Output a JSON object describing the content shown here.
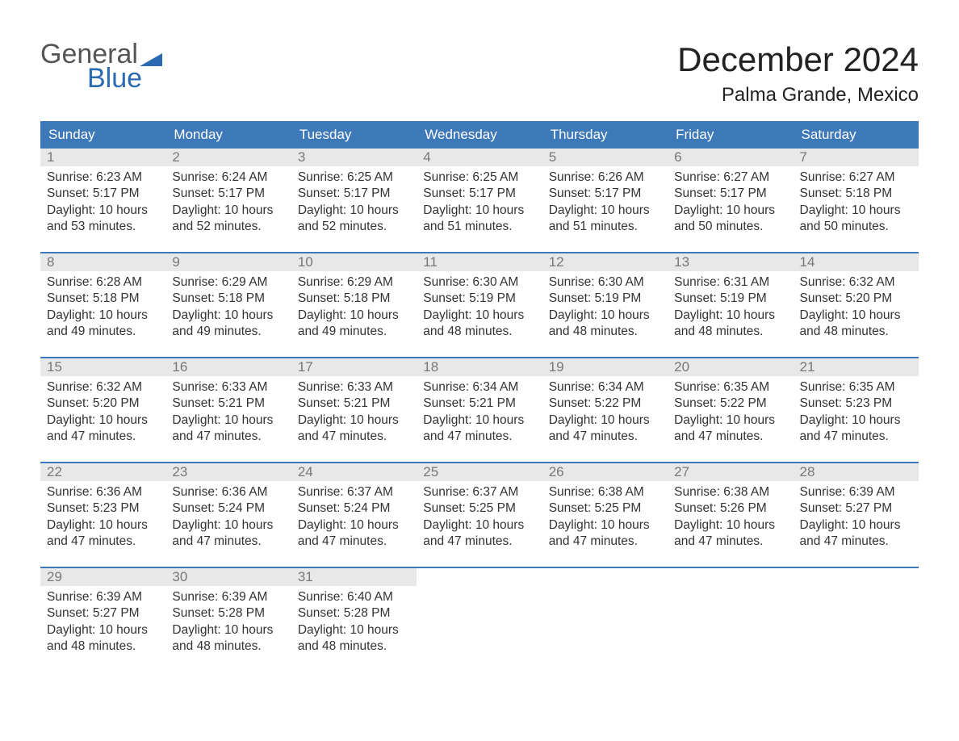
{
  "logo": {
    "word1": "General",
    "word2": "Blue",
    "word1_color": "#555555",
    "word2_color": "#2a6ab0",
    "flag_color": "#2a6ab0"
  },
  "title": "December 2024",
  "location": "Palma Grande, Mexico",
  "colors": {
    "header_bg": "#3d78b8",
    "header_text": "#ffffff",
    "daynum_bg": "#e8e8e8",
    "daynum_text": "#777777",
    "body_text": "#333333",
    "week_border": "#3d78b8",
    "page_bg": "#ffffff"
  },
  "fonts": {
    "title_size_pt": 32,
    "location_size_pt": 18,
    "header_size_pt": 13,
    "body_size_pt": 11.5
  },
  "weekdays": [
    "Sunday",
    "Monday",
    "Tuesday",
    "Wednesday",
    "Thursday",
    "Friday",
    "Saturday"
  ],
  "weeks": [
    [
      {
        "n": "1",
        "sunrise": "Sunrise: 6:23 AM",
        "sunset": "Sunset: 5:17 PM",
        "daylight": "Daylight: 10 hours and 53 minutes."
      },
      {
        "n": "2",
        "sunrise": "Sunrise: 6:24 AM",
        "sunset": "Sunset: 5:17 PM",
        "daylight": "Daylight: 10 hours and 52 minutes."
      },
      {
        "n": "3",
        "sunrise": "Sunrise: 6:25 AM",
        "sunset": "Sunset: 5:17 PM",
        "daylight": "Daylight: 10 hours and 52 minutes."
      },
      {
        "n": "4",
        "sunrise": "Sunrise: 6:25 AM",
        "sunset": "Sunset: 5:17 PM",
        "daylight": "Daylight: 10 hours and 51 minutes."
      },
      {
        "n": "5",
        "sunrise": "Sunrise: 6:26 AM",
        "sunset": "Sunset: 5:17 PM",
        "daylight": "Daylight: 10 hours and 51 minutes."
      },
      {
        "n": "6",
        "sunrise": "Sunrise: 6:27 AM",
        "sunset": "Sunset: 5:17 PM",
        "daylight": "Daylight: 10 hours and 50 minutes."
      },
      {
        "n": "7",
        "sunrise": "Sunrise: 6:27 AM",
        "sunset": "Sunset: 5:18 PM",
        "daylight": "Daylight: 10 hours and 50 minutes."
      }
    ],
    [
      {
        "n": "8",
        "sunrise": "Sunrise: 6:28 AM",
        "sunset": "Sunset: 5:18 PM",
        "daylight": "Daylight: 10 hours and 49 minutes."
      },
      {
        "n": "9",
        "sunrise": "Sunrise: 6:29 AM",
        "sunset": "Sunset: 5:18 PM",
        "daylight": "Daylight: 10 hours and 49 minutes."
      },
      {
        "n": "10",
        "sunrise": "Sunrise: 6:29 AM",
        "sunset": "Sunset: 5:18 PM",
        "daylight": "Daylight: 10 hours and 49 minutes."
      },
      {
        "n": "11",
        "sunrise": "Sunrise: 6:30 AM",
        "sunset": "Sunset: 5:19 PM",
        "daylight": "Daylight: 10 hours and 48 minutes."
      },
      {
        "n": "12",
        "sunrise": "Sunrise: 6:30 AM",
        "sunset": "Sunset: 5:19 PM",
        "daylight": "Daylight: 10 hours and 48 minutes."
      },
      {
        "n": "13",
        "sunrise": "Sunrise: 6:31 AM",
        "sunset": "Sunset: 5:19 PM",
        "daylight": "Daylight: 10 hours and 48 minutes."
      },
      {
        "n": "14",
        "sunrise": "Sunrise: 6:32 AM",
        "sunset": "Sunset: 5:20 PM",
        "daylight": "Daylight: 10 hours and 48 minutes."
      }
    ],
    [
      {
        "n": "15",
        "sunrise": "Sunrise: 6:32 AM",
        "sunset": "Sunset: 5:20 PM",
        "daylight": "Daylight: 10 hours and 47 minutes."
      },
      {
        "n": "16",
        "sunrise": "Sunrise: 6:33 AM",
        "sunset": "Sunset: 5:21 PM",
        "daylight": "Daylight: 10 hours and 47 minutes."
      },
      {
        "n": "17",
        "sunrise": "Sunrise: 6:33 AM",
        "sunset": "Sunset: 5:21 PM",
        "daylight": "Daylight: 10 hours and 47 minutes."
      },
      {
        "n": "18",
        "sunrise": "Sunrise: 6:34 AM",
        "sunset": "Sunset: 5:21 PM",
        "daylight": "Daylight: 10 hours and 47 minutes."
      },
      {
        "n": "19",
        "sunrise": "Sunrise: 6:34 AM",
        "sunset": "Sunset: 5:22 PM",
        "daylight": "Daylight: 10 hours and 47 minutes."
      },
      {
        "n": "20",
        "sunrise": "Sunrise: 6:35 AM",
        "sunset": "Sunset: 5:22 PM",
        "daylight": "Daylight: 10 hours and 47 minutes."
      },
      {
        "n": "21",
        "sunrise": "Sunrise: 6:35 AM",
        "sunset": "Sunset: 5:23 PM",
        "daylight": "Daylight: 10 hours and 47 minutes."
      }
    ],
    [
      {
        "n": "22",
        "sunrise": "Sunrise: 6:36 AM",
        "sunset": "Sunset: 5:23 PM",
        "daylight": "Daylight: 10 hours and 47 minutes."
      },
      {
        "n": "23",
        "sunrise": "Sunrise: 6:36 AM",
        "sunset": "Sunset: 5:24 PM",
        "daylight": "Daylight: 10 hours and 47 minutes."
      },
      {
        "n": "24",
        "sunrise": "Sunrise: 6:37 AM",
        "sunset": "Sunset: 5:24 PM",
        "daylight": "Daylight: 10 hours and 47 minutes."
      },
      {
        "n": "25",
        "sunrise": "Sunrise: 6:37 AM",
        "sunset": "Sunset: 5:25 PM",
        "daylight": "Daylight: 10 hours and 47 minutes."
      },
      {
        "n": "26",
        "sunrise": "Sunrise: 6:38 AM",
        "sunset": "Sunset: 5:25 PM",
        "daylight": "Daylight: 10 hours and 47 minutes."
      },
      {
        "n": "27",
        "sunrise": "Sunrise: 6:38 AM",
        "sunset": "Sunset: 5:26 PM",
        "daylight": "Daylight: 10 hours and 47 minutes."
      },
      {
        "n": "28",
        "sunrise": "Sunrise: 6:39 AM",
        "sunset": "Sunset: 5:27 PM",
        "daylight": "Daylight: 10 hours and 47 minutes."
      }
    ],
    [
      {
        "n": "29",
        "sunrise": "Sunrise: 6:39 AM",
        "sunset": "Sunset: 5:27 PM",
        "daylight": "Daylight: 10 hours and 48 minutes."
      },
      {
        "n": "30",
        "sunrise": "Sunrise: 6:39 AM",
        "sunset": "Sunset: 5:28 PM",
        "daylight": "Daylight: 10 hours and 48 minutes."
      },
      {
        "n": "31",
        "sunrise": "Sunrise: 6:40 AM",
        "sunset": "Sunset: 5:28 PM",
        "daylight": "Daylight: 10 hours and 48 minutes."
      },
      {
        "empty": true
      },
      {
        "empty": true
      },
      {
        "empty": true
      },
      {
        "empty": true
      }
    ]
  ]
}
